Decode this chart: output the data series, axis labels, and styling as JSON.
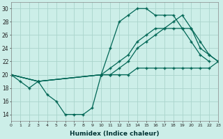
{
  "xlabel": "Humidex (Indice chaleur)",
  "background_color": "#cceee8",
  "grid_color": "#aad4cc",
  "line_color": "#006655",
  "xlim": [
    0,
    23
  ],
  "ylim": [
    13,
    31
  ],
  "yticks": [
    14,
    16,
    18,
    20,
    22,
    24,
    26,
    28,
    30
  ],
  "xticks": [
    0,
    1,
    2,
    3,
    4,
    5,
    6,
    7,
    8,
    9,
    10,
    11,
    12,
    13,
    14,
    15,
    16,
    17,
    18,
    19,
    20,
    21,
    22,
    23
  ],
  "series": [
    {
      "x": [
        0,
        1,
        2,
        3,
        4,
        5,
        6,
        7,
        8,
        9,
        10,
        11,
        12,
        13,
        14,
        15,
        16,
        17,
        18,
        19,
        20,
        21,
        22,
        23
      ],
      "y": [
        20,
        19,
        18,
        19,
        17,
        16,
        14,
        14,
        14,
        15,
        20,
        24,
        28,
        29,
        30,
        30,
        29,
        29,
        29,
        27,
        25,
        23,
        22,
        null
      ]
    },
    {
      "x": [
        0,
        3,
        10,
        11,
        12,
        13,
        14,
        15,
        16,
        17,
        18,
        19,
        20,
        21,
        22,
        23
      ],
      "y": [
        20,
        19,
        20,
        20,
        20,
        20,
        21,
        21,
        21,
        21,
        21,
        21,
        21,
        21,
        21,
        22
      ]
    },
    {
      "x": [
        0,
        3,
        10,
        11,
        12,
        13,
        14,
        15,
        16,
        17,
        18,
        19,
        20,
        21,
        22,
        23
      ],
      "y": [
        20,
        19,
        20,
        21,
        22,
        23,
        25,
        26,
        27,
        27,
        27,
        27,
        27,
        24,
        23,
        22
      ]
    },
    {
      "x": [
        0,
        3,
        10,
        11,
        12,
        13,
        14,
        15,
        16,
        17,
        18,
        19,
        20,
        21,
        22,
        23
      ],
      "y": [
        20,
        19,
        20,
        20,
        21,
        22,
        24,
        25,
        26,
        27,
        28,
        29,
        27,
        25,
        23,
        22
      ]
    }
  ]
}
